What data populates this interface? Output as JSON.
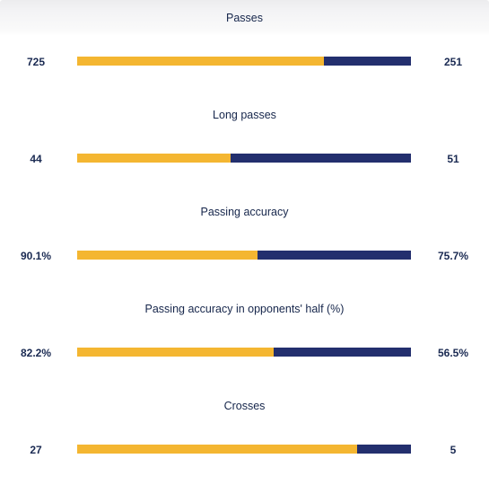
{
  "colors": {
    "home": "#f4b631",
    "away": "#232f6e",
    "text": "#16264b"
  },
  "stats": [
    {
      "title": "Passes",
      "home": "725",
      "away": "251",
      "home_share": 0.74
    },
    {
      "title": "Long passes",
      "home": "44",
      "away": "51",
      "home_share": 0.46
    },
    {
      "title": "Passing accuracy",
      "home": "90.1%",
      "away": "75.7%",
      "home_share": 0.54
    },
    {
      "title": "Passing accuracy in opponents' half (%)",
      "home": "82.2%",
      "away": "56.5%",
      "home_share": 0.59
    },
    {
      "title": "Crosses",
      "home": "27",
      "away": "5",
      "home_share": 0.84
    }
  ]
}
